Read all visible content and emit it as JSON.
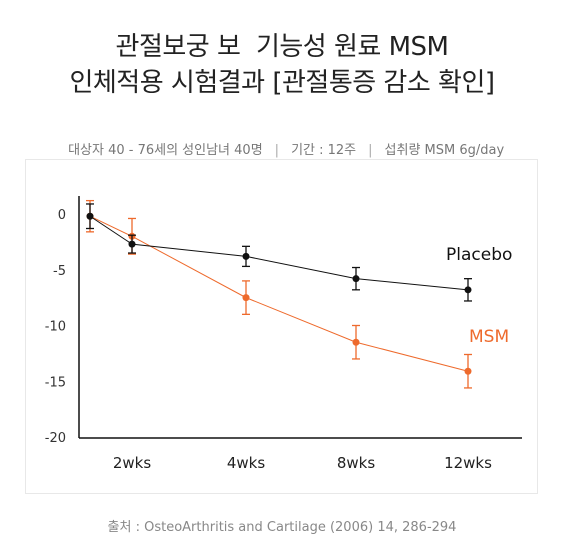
{
  "title": {
    "line1": "관절보궁 보  기능성 원료 MSM",
    "line2": "인체적용 시험결과 [관절통증 감소 확인]"
  },
  "info": {
    "subjects": "대상자 40 - 76세의 성인남녀 40명",
    "period": "기간 : 12주",
    "intake": "섭취량 MSM 6g/day"
  },
  "source": "출처 : OsteoArthritis and Cartilage (2006) 14, 286-294",
  "colors": {
    "placebo": "#111111",
    "msm": "#ee6a2c",
    "axis": "#111111"
  },
  "chart_data": {
    "type": "line",
    "x": [
      "0",
      "2wks",
      "4wks",
      "8wks",
      "12wks"
    ],
    "xtick_labels": [
      "2wks",
      "4wks",
      "8wks",
      "12wks"
    ],
    "ylim": [
      -20,
      0
    ],
    "yticks": [
      0,
      -5,
      -10,
      -15,
      -20
    ],
    "series": [
      {
        "name": "Placebo",
        "values": [
          -0.2,
          -2.7,
          -3.8,
          -5.8,
          -6.8
        ],
        "errors": [
          1.1,
          0.8,
          0.9,
          1.0,
          1.0
        ],
        "color": "#111111"
      },
      {
        "name": "MSM",
        "values": [
          -0.2,
          -2.0,
          -7.5,
          -11.5,
          -14.1
        ],
        "errors": [
          1.4,
          1.6,
          1.5,
          1.5,
          1.5
        ],
        "color": "#ee6a2c"
      }
    ]
  }
}
